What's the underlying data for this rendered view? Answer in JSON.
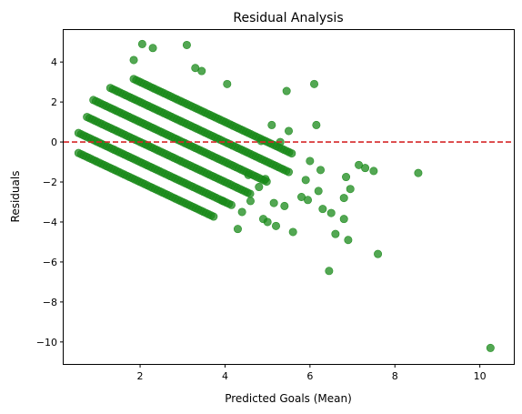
{
  "chart_data": {
    "type": "scatter",
    "title": "Residual Analysis",
    "xlabel": "Predicted Goals (Mean)",
    "ylabel": "Residuals",
    "xlim": [
      0.2,
      10.8
    ],
    "ylim": [
      -11.1,
      5.6
    ],
    "xticks": [
      2,
      4,
      6,
      8,
      10
    ],
    "yticks": [
      4,
      2,
      0,
      -2,
      -4,
      -6,
      -8,
      -10
    ],
    "tick_labels_x": [
      "2",
      "4",
      "6",
      "8",
      "10"
    ],
    "tick_labels_y": [
      "4",
      "2",
      "0",
      "−2",
      "−4",
      "−6",
      "−8",
      "−10"
    ],
    "reference_line": {
      "y": 0,
      "style": "dashed",
      "color": "#d62728"
    },
    "marker_color": "#1a8a1a",
    "marker_opacity": 0.75,
    "grid": false,
    "series": [
      {
        "bands": [
          {
            "count": 0,
            "x_range": [
              0.55,
              3.75
            ]
          },
          {
            "count": 1,
            "x_range": [
              0.55,
              4.2
            ]
          },
          {
            "count": 2,
            "x_range": [
              0.75,
              4.6
            ]
          },
          {
            "count": 3,
            "x_range": [
              0.9,
              5.0
            ]
          },
          {
            "count": 4,
            "x_range": [
              1.3,
              5.5
            ]
          },
          {
            "count": 5,
            "x_range": [
              1.85,
              5.6
            ]
          }
        ],
        "outliers": [
          [
            2.05,
            4.9
          ],
          [
            2.3,
            4.7
          ],
          [
            3.1,
            4.85
          ],
          [
            1.85,
            4.1
          ],
          [
            3.3,
            3.7
          ],
          [
            3.45,
            3.55
          ],
          [
            4.05,
            2.9
          ],
          [
            5.45,
            2.55
          ],
          [
            6.1,
            2.9
          ],
          [
            5.1,
            0.85
          ],
          [
            6.15,
            0.85
          ],
          [
            5.5,
            0.55
          ],
          [
            4.85,
            0.05
          ],
          [
            5.3,
            0.0
          ],
          [
            5.9,
            -1.9
          ],
          [
            6.0,
            -0.95
          ],
          [
            6.25,
            -1.4
          ],
          [
            5.8,
            -2.75
          ],
          [
            5.95,
            -2.9
          ],
          [
            6.2,
            -2.45
          ],
          [
            6.85,
            -1.75
          ],
          [
            6.95,
            -2.35
          ],
          [
            7.15,
            -1.15
          ],
          [
            7.3,
            -1.3
          ],
          [
            7.5,
            -1.45
          ],
          [
            6.3,
            -3.35
          ],
          [
            6.5,
            -3.55
          ],
          [
            6.8,
            -2.8
          ],
          [
            6.8,
            -3.85
          ],
          [
            6.6,
            -4.6
          ],
          [
            6.9,
            -4.9
          ],
          [
            7.6,
            -5.6
          ],
          [
            6.45,
            -6.45
          ],
          [
            8.55,
            -1.55
          ],
          [
            10.25,
            -10.3
          ],
          [
            4.3,
            -4.35
          ],
          [
            4.4,
            -3.5
          ],
          [
            4.6,
            -2.95
          ],
          [
            4.9,
            -3.85
          ],
          [
            5.0,
            -4.0
          ],
          [
            5.2,
            -4.2
          ],
          [
            5.6,
            -4.5
          ],
          [
            4.8,
            -2.25
          ],
          [
            5.15,
            -3.05
          ],
          [
            5.4,
            -3.2
          ],
          [
            3.95,
            -2.95
          ],
          [
            4.55,
            -1.65
          ],
          [
            4.95,
            -1.85
          ]
        ]
      }
    ]
  }
}
